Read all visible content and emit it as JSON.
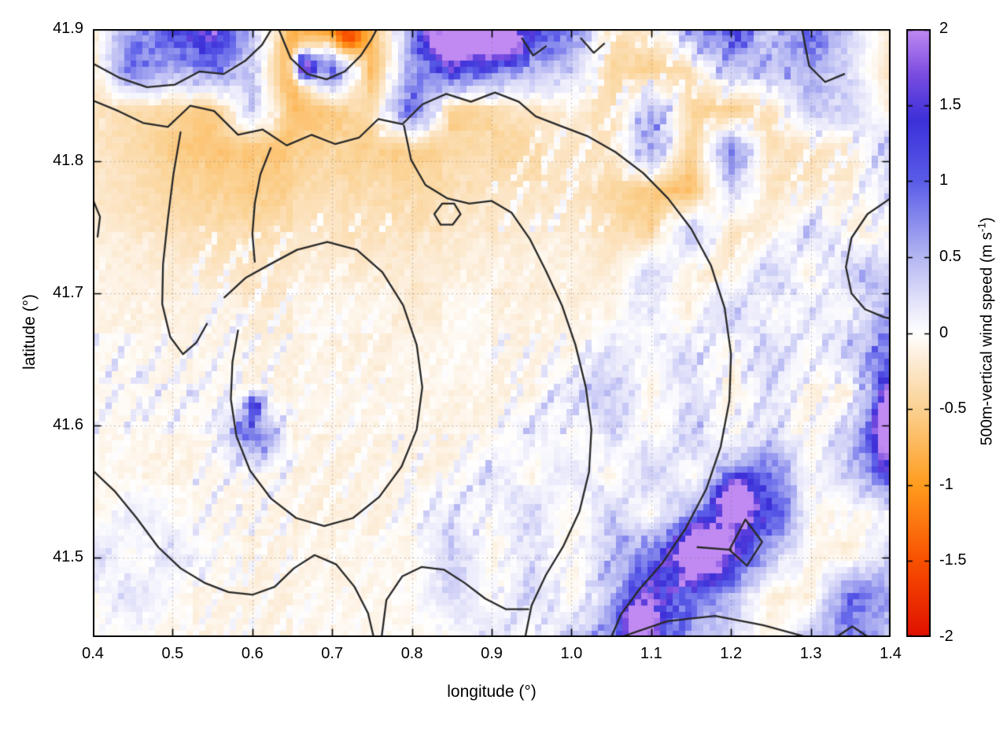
{
  "figure": {
    "background": "#ffffff"
  },
  "axes": {
    "xlabel": "longitude (°)",
    "ylabel": "latitude (°)",
    "xlim": [
      0.4,
      1.4
    ],
    "ylim": [
      41.44,
      41.9
    ],
    "grid": "dotted",
    "x_ticks": [
      {
        "v": 0.4,
        "label": "0.4"
      },
      {
        "v": 0.5,
        "label": "0.5"
      },
      {
        "v": 0.6,
        "label": "0.6"
      },
      {
        "v": 0.7,
        "label": "0.7"
      },
      {
        "v": 0.8,
        "label": "0.8"
      },
      {
        "v": 0.9,
        "label": "0.9"
      },
      {
        "v": 1.0,
        "label": "1.0"
      },
      {
        "v": 1.1,
        "label": "1.1"
      },
      {
        "v": 1.2,
        "label": "1.2"
      },
      {
        "v": 1.3,
        "label": "1.3"
      },
      {
        "v": 1.4,
        "label": "1.4"
      }
    ],
    "y_ticks": [
      {
        "v": 41.9,
        "label": "41.9"
      },
      {
        "v": 41.8,
        "label": "41.8"
      },
      {
        "v": 41.7,
        "label": "41.7"
      },
      {
        "v": 41.6,
        "label": "41.6"
      },
      {
        "v": 41.5,
        "label": "41.5"
      }
    ]
  },
  "colorbar": {
    "label_main": "500m-vertical wind speed (m s",
    "label_sup": "-1",
    "label_close": ")",
    "range": [
      -2,
      2
    ],
    "ticks": [
      {
        "v": 2,
        "label": "2"
      },
      {
        "v": 1.5,
        "label": "1.5"
      },
      {
        "v": 1,
        "label": "1"
      },
      {
        "v": 0.5,
        "label": "0.5"
      },
      {
        "v": 0,
        "label": "0"
      },
      {
        "v": -0.5,
        "label": "-0.5"
      },
      {
        "v": -1,
        "label": "-1"
      },
      {
        "v": -1.5,
        "label": "-1.5"
      },
      {
        "v": -2,
        "label": "-2"
      }
    ],
    "stops": [
      {
        "v": -2.0,
        "c": "#e01000"
      },
      {
        "v": -1.5,
        "c": "#f85000"
      },
      {
        "v": -1.0,
        "c": "#ff9c1e"
      },
      {
        "v": -0.5,
        "c": "#fbd191"
      },
      {
        "v": -0.2,
        "c": "#fcead2"
      },
      {
        "v": 0.0,
        "c": "#ffffff"
      },
      {
        "v": 0.2,
        "c": "#e4e4fa"
      },
      {
        "v": 0.5,
        "c": "#b4b6f2"
      },
      {
        "v": 1.0,
        "c": "#5a5ce8"
      },
      {
        "v": 1.4,
        "c": "#3c30d8"
      },
      {
        "v": 1.7,
        "c": "#7a4ce0"
      },
      {
        "v": 2.0,
        "c": "#c08af2"
      }
    ]
  },
  "chart_data": {
    "type": "heatmap",
    "units": "m s-1",
    "x_range": [
      0.4,
      1.4
    ],
    "y_range": [
      41.44,
      41.9
    ],
    "colormap_range": [
      -2,
      2
    ],
    "grid_lons": [
      0.4,
      0.45,
      0.5,
      0.55,
      0.6,
      0.65,
      0.7,
      0.75,
      0.8,
      0.85,
      0.9,
      0.95,
      1.0,
      1.05,
      1.1,
      1.15,
      1.2,
      1.25,
      1.3,
      1.35,
      1.4
    ],
    "grid_lats": [
      41.9,
      41.869,
      41.839,
      41.808,
      41.777,
      41.747,
      41.716,
      41.685,
      41.655,
      41.624,
      41.593,
      41.563,
      41.532,
      41.501,
      41.471,
      41.44
    ],
    "values": [
      [
        -0.2,
        0.6,
        1.2,
        1.6,
        0.4,
        -0.8,
        -0.9,
        -0.7,
        0.5,
        1.8,
        1.9,
        1.3,
        0.8,
        -0.3,
        -0.2,
        0.5,
        1.0,
        0.2,
        1.1,
        0.3,
        -0.2
      ],
      [
        -0.3,
        0.9,
        0.5,
        0.8,
        0.3,
        -1.0,
        1.0,
        -0.8,
        0.6,
        1.2,
        0.9,
        0.5,
        0.3,
        -0.4,
        -0.5,
        -0.3,
        0.4,
        0.4,
        0.6,
        0.2,
        -0.3
      ],
      [
        -0.3,
        -0.4,
        -0.5,
        -0.6,
        0.3,
        -0.7,
        -0.6,
        -0.4,
        0.9,
        -0.5,
        -0.4,
        -0.3,
        -0.2,
        -0.3,
        0.5,
        -0.4,
        -0.5,
        -0.3,
        0.4,
        0.3,
        -0.2
      ],
      [
        -0.25,
        -0.35,
        -0.55,
        -0.65,
        -0.6,
        -0.55,
        -0.5,
        -0.55,
        -0.5,
        -0.45,
        -0.4,
        -0.35,
        -0.3,
        -0.35,
        0.6,
        -0.5,
        0.8,
        -0.3,
        -0.25,
        -0.2,
        0.4
      ],
      [
        -0.2,
        -0.3,
        -0.4,
        -0.5,
        -0.5,
        -0.45,
        -0.4,
        -0.4,
        -0.35,
        -0.35,
        -0.3,
        -0.3,
        -0.25,
        -0.4,
        -0.6,
        -0.7,
        0.3,
        -0.3,
        -0.2,
        -0.15,
        0.2
      ],
      [
        -0.15,
        -0.2,
        -0.3,
        -0.35,
        -0.35,
        -0.3,
        -0.3,
        -0.3,
        -0.3,
        -0.25,
        -0.25,
        -0.2,
        -0.2,
        -0.3,
        -0.45,
        0.5,
        -0.3,
        -0.2,
        0.3,
        -0.15,
        -0.1
      ],
      [
        -0.1,
        -0.15,
        -0.2,
        -0.25,
        -0.25,
        -0.2,
        -0.2,
        -0.2,
        -0.2,
        -0.2,
        -0.15,
        -0.15,
        -0.15,
        -0.2,
        0.3,
        -0.2,
        -0.2,
        0.3,
        -0.15,
        0.4,
        0.3
      ],
      [
        -0.1,
        -0.12,
        -0.15,
        -0.15,
        -0.15,
        -0.15,
        -0.12,
        -0.12,
        -0.15,
        -0.12,
        -0.1,
        -0.12,
        -0.1,
        -0.15,
        0.2,
        -0.15,
        0.3,
        -0.1,
        0.2,
        -0.1,
        0.5
      ],
      [
        -0.1,
        -0.1,
        -0.12,
        -0.12,
        -0.1,
        -0.1,
        -0.1,
        -0.1,
        -0.1,
        -0.1,
        -0.1,
        -0.1,
        -0.1,
        0.2,
        -0.1,
        0.25,
        -0.1,
        0.3,
        -0.1,
        0.3,
        0.8
      ],
      [
        -0.1,
        -0.1,
        -0.1,
        -0.1,
        -0.1,
        -0.1,
        -0.1,
        -0.1,
        -0.1,
        -0.1,
        -0.1,
        -0.1,
        0.2,
        0.3,
        -0.1,
        0.2,
        -0.15,
        0.2,
        -0.1,
        -0.15,
        1.0
      ],
      [
        -0.1,
        -0.1,
        -0.1,
        -0.1,
        0.9,
        -0.1,
        -0.1,
        -0.1,
        -0.1,
        -0.12,
        -0.1,
        0.2,
        -0.1,
        0.25,
        -0.1,
        0.3,
        -0.1,
        0.2,
        -0.15,
        0.4,
        1.4
      ],
      [
        -0.12,
        -0.12,
        -0.1,
        -0.1,
        -0.1,
        -0.1,
        -0.1,
        -0.1,
        -0.1,
        -0.1,
        0.25,
        -0.1,
        0.2,
        -0.1,
        0.3,
        -0.1,
        0.4,
        0.9,
        -0.1,
        0.3,
        0.8
      ],
      [
        -0.1,
        0.2,
        -0.1,
        -0.1,
        -0.1,
        -0.12,
        -0.1,
        -0.1,
        -0.1,
        0.2,
        -0.1,
        0.25,
        -0.1,
        0.3,
        -0.1,
        0.5,
        1.6,
        1.2,
        -0.1,
        -0.15,
        -0.1
      ],
      [
        0.3,
        -0.1,
        0.25,
        -0.1,
        -0.1,
        -0.1,
        -0.12,
        -0.1,
        -0.1,
        0.3,
        -0.1,
        0.2,
        -0.1,
        0.4,
        0.8,
        1.8,
        1.5,
        0.5,
        -0.15,
        -0.2,
        0.3
      ],
      [
        -0.1,
        0.2,
        -0.1,
        -0.12,
        -0.1,
        -0.1,
        -0.1,
        -0.12,
        -0.1,
        0.25,
        -0.1,
        0.3,
        -0.1,
        0.3,
        1.4,
        1.0,
        0.4,
        -0.15,
        -0.2,
        0.9,
        0.6
      ],
      [
        -0.12,
        -0.1,
        -0.12,
        -0.1,
        -0.1,
        -0.12,
        -0.1,
        -0.1,
        -0.12,
        -0.1,
        0.2,
        -0.1,
        0.3,
        0.6,
        1.2,
        0.5,
        0.3,
        -0.15,
        0.4,
        0.8,
        0.4
      ]
    ],
    "hotspots": [
      {
        "x": 0.72,
        "y": 41.893,
        "sx": 0.013,
        "sy": 0.008,
        "a": -1.0
      },
      {
        "x": 0.665,
        "y": 41.872,
        "sx": 0.01,
        "sy": 0.008,
        "a": 2.2
      },
      {
        "x": 0.86,
        "y": 41.892,
        "sx": 0.026,
        "sy": 0.01,
        "a": 2.0
      },
      {
        "x": 0.92,
        "y": 41.888,
        "sx": 0.012,
        "sy": 0.008,
        "a": 1.6
      },
      {
        "x": 1.205,
        "y": 41.545,
        "sx": 0.014,
        "sy": 0.012,
        "a": 2.2
      },
      {
        "x": 1.165,
        "y": 41.505,
        "sx": 0.018,
        "sy": 0.014,
        "a": 2.0
      },
      {
        "x": 1.395,
        "y": 41.6,
        "sx": 0.01,
        "sy": 0.024,
        "a": 1.5
      },
      {
        "x": 0.602,
        "y": 41.615,
        "sx": 0.008,
        "sy": 0.007,
        "a": 1.1
      },
      {
        "x": 1.085,
        "y": 41.452,
        "sx": 0.015,
        "sy": 0.012,
        "a": 1.6
      }
    ],
    "contour_lines": [
      [
        [
          0.4,
          41.846
        ],
        [
          0.432,
          41.838
        ],
        [
          0.463,
          41.829
        ],
        [
          0.494,
          41.826
        ],
        [
          0.522,
          41.842
        ],
        [
          0.552,
          41.838
        ],
        [
          0.582,
          41.82
        ],
        [
          0.613,
          41.824
        ],
        [
          0.643,
          41.812
        ],
        [
          0.674,
          41.82
        ],
        [
          0.704,
          41.813
        ],
        [
          0.734,
          41.818
        ],
        [
          0.758,
          41.832
        ],
        [
          0.788,
          41.828
        ],
        [
          0.813,
          41.843
        ],
        [
          0.843,
          41.851
        ],
        [
          0.874,
          41.845
        ],
        [
          0.904,
          41.852
        ],
        [
          0.934,
          41.845
        ],
        [
          0.955,
          41.834
        ],
        [
          0.985,
          41.827
        ],
        [
          1.02,
          41.819
        ],
        [
          1.055,
          41.807
        ],
        [
          1.09,
          41.791
        ],
        [
          1.121,
          41.772
        ],
        [
          1.15,
          41.749
        ],
        [
          1.175,
          41.721
        ],
        [
          1.192,
          41.689
        ],
        [
          1.2,
          41.654
        ],
        [
          1.198,
          41.619
        ],
        [
          1.187,
          41.584
        ],
        [
          1.169,
          41.552
        ],
        [
          1.143,
          41.522
        ],
        [
          1.114,
          41.496
        ],
        [
          1.085,
          41.476
        ],
        [
          1.062,
          41.457
        ],
        [
          1.05,
          41.44
        ]
      ],
      [
        [
          0.4,
          41.874
        ],
        [
          0.434,
          41.863
        ],
        [
          0.468,
          41.856
        ],
        [
          0.503,
          41.858
        ],
        [
          0.534,
          41.868
        ],
        [
          0.564,
          41.866
        ],
        [
          0.591,
          41.876
        ],
        [
          0.612,
          41.888
        ],
        [
          0.624,
          41.9
        ]
      ],
      [
        [
          0.633,
          41.9
        ],
        [
          0.648,
          41.878
        ],
        [
          0.669,
          41.866
        ],
        [
          0.693,
          41.862
        ],
        [
          0.716,
          41.868
        ],
        [
          0.736,
          41.88
        ],
        [
          0.749,
          41.892
        ],
        [
          0.756,
          41.9
        ]
      ],
      [
        [
          0.51,
          41.822
        ],
        [
          0.501,
          41.79
        ],
        [
          0.494,
          41.756
        ],
        [
          0.488,
          41.722
        ],
        [
          0.487,
          41.692
        ],
        [
          0.497,
          41.667
        ],
        [
          0.513,
          41.654
        ],
        [
          0.53,
          41.663
        ],
        [
          0.543,
          41.677
        ]
      ],
      [
        [
          0.4,
          41.566
        ],
        [
          0.428,
          41.55
        ],
        [
          0.455,
          41.53
        ],
        [
          0.482,
          41.508
        ],
        [
          0.51,
          41.492
        ],
        [
          0.54,
          41.481
        ],
        [
          0.57,
          41.474
        ],
        [
          0.6,
          41.472
        ],
        [
          0.628,
          41.478
        ],
        [
          0.652,
          41.492
        ],
        [
          0.678,
          41.502
        ],
        [
          0.705,
          41.495
        ],
        [
          0.728,
          41.478
        ],
        [
          0.745,
          41.458
        ],
        [
          0.752,
          41.44
        ]
      ],
      [
        [
          0.582,
          41.672
        ],
        [
          0.575,
          41.648
        ],
        [
          0.573,
          41.62
        ],
        [
          0.58,
          41.592
        ],
        [
          0.597,
          41.566
        ],
        [
          0.623,
          41.545
        ],
        [
          0.655,
          41.53
        ],
        [
          0.69,
          41.524
        ],
        [
          0.726,
          41.53
        ],
        [
          0.759,
          41.546
        ],
        [
          0.787,
          41.569
        ],
        [
          0.806,
          41.597
        ],
        [
          0.813,
          41.629
        ],
        [
          0.806,
          41.661
        ],
        [
          0.789,
          41.691
        ],
        [
          0.763,
          41.716
        ],
        [
          0.731,
          41.733
        ],
        [
          0.694,
          41.739
        ],
        [
          0.656,
          41.733
        ],
        [
          0.622,
          41.722
        ],
        [
          0.592,
          41.712
        ],
        [
          0.565,
          41.697
        ]
      ],
      [
        [
          0.79,
          41.827
        ],
        [
          0.799,
          41.801
        ],
        [
          0.817,
          41.782
        ],
        [
          0.844,
          41.772
        ],
        [
          0.872,
          41.768
        ],
        [
          0.9,
          41.77
        ],
        [
          0.925,
          41.761
        ],
        [
          0.948,
          41.741
        ],
        [
          0.968,
          41.717
        ],
        [
          0.988,
          41.691
        ],
        [
          1.005,
          41.661
        ],
        [
          1.018,
          41.629
        ],
        [
          1.025,
          41.597
        ],
        [
          1.022,
          41.565
        ],
        [
          1.01,
          41.535
        ],
        [
          0.99,
          41.509
        ],
        [
          0.968,
          41.487
        ],
        [
          0.95,
          41.464
        ],
        [
          0.942,
          41.44
        ]
      ],
      [
        [
          0.762,
          41.44
        ],
        [
          0.768,
          41.468
        ],
        [
          0.788,
          41.486
        ],
        [
          0.812,
          41.493
        ],
        [
          0.84,
          41.491
        ],
        [
          0.866,
          41.481
        ],
        [
          0.892,
          41.469
        ],
        [
          0.918,
          41.461
        ],
        [
          0.946,
          41.461
        ]
      ],
      [
        [
          0.828,
          41.76
        ],
        [
          0.838,
          41.768
        ],
        [
          0.853,
          41.768
        ],
        [
          0.861,
          41.76
        ],
        [
          0.851,
          41.752
        ],
        [
          0.836,
          41.752
        ],
        [
          0.828,
          41.76
        ]
      ],
      [
        [
          0.4,
          41.771
        ],
        [
          0.409,
          41.758
        ],
        [
          0.406,
          41.743
        ]
      ],
      [
        [
          0.938,
          41.893
        ],
        [
          0.952,
          41.88
        ],
        [
          0.968,
          41.887
        ]
      ],
      [
        [
          1.012,
          41.893
        ],
        [
          1.028,
          41.882
        ],
        [
          1.041,
          41.889
        ]
      ],
      [
        [
          1.289,
          41.9
        ],
        [
          1.298,
          41.872
        ],
        [
          1.318,
          41.86
        ],
        [
          1.342,
          41.866
        ]
      ],
      [
        [
          1.4,
          41.772
        ],
        [
          1.371,
          41.76
        ],
        [
          1.351,
          41.742
        ],
        [
          1.344,
          41.72
        ],
        [
          1.351,
          41.7
        ],
        [
          1.368,
          41.688
        ],
        [
          1.392,
          41.682
        ],
        [
          1.4,
          41.681
        ]
      ],
      [
        [
          1.198,
          41.506
        ],
        [
          1.218,
          41.529
        ],
        [
          1.239,
          41.512
        ],
        [
          1.22,
          41.494
        ],
        [
          1.198,
          41.506
        ]
      ],
      [
        [
          1.158,
          41.508
        ],
        [
          1.2,
          41.506
        ]
      ],
      [
        [
          1.062,
          41.44
        ],
        [
          1.12,
          41.452
        ],
        [
          1.18,
          41.456
        ],
        [
          1.24,
          41.449
        ],
        [
          1.295,
          41.44
        ]
      ],
      [
        [
          1.332,
          41.44
        ],
        [
          1.352,
          41.448
        ],
        [
          1.372,
          41.44
        ]
      ],
      [
        [
          0.623,
          41.81
        ],
        [
          0.61,
          41.79
        ],
        [
          0.603,
          41.768
        ],
        [
          0.6,
          41.745
        ],
        [
          0.603,
          41.724
        ]
      ]
    ]
  }
}
